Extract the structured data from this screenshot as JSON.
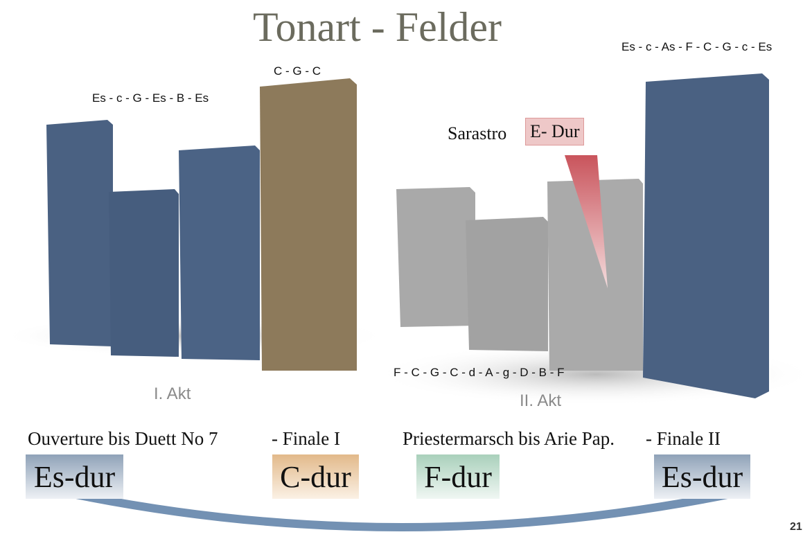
{
  "title": "Tonart - Felder",
  "act1": {
    "block_labels": [
      "Es - c - G - Es - B - Es",
      "C - G - C"
    ],
    "act_label": "I. Akt",
    "caption": [
      "Ouverture bis Duett No 7",
      "- Finale I"
    ],
    "keys": [
      "Es-dur",
      "C-dur"
    ]
  },
  "act2": {
    "block_labels": [
      "Es - c - As - F - C - G - c - Es",
      "F - C - G - C - d - A - g - D - B - F"
    ],
    "act_label": "II. Akt",
    "callout": [
      "Sarastro",
      "E- Dur"
    ],
    "caption": [
      "Priestermarsch bis Arie Pap.",
      "- Finale II"
    ],
    "keys": [
      "F-dur",
      "Es-dur"
    ]
  },
  "page_number": "21"
}
